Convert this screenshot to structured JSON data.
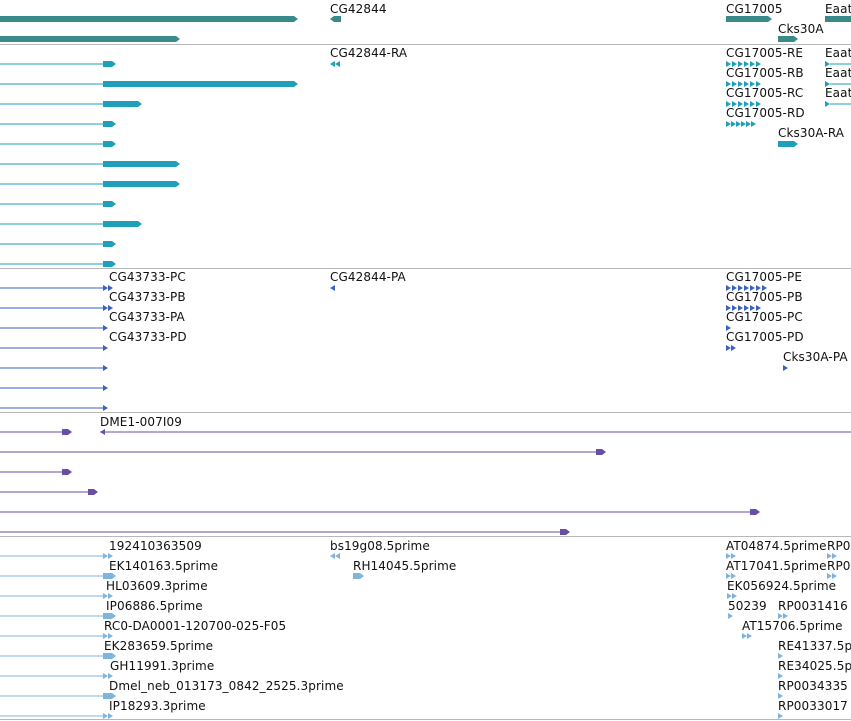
{
  "colors": {
    "gene": "#3a8a8a",
    "mrna": "#1e9fba",
    "protein": "#3a62c0",
    "bac": "#6a4ea4",
    "est": "#7fb4dc",
    "separator": "#b8b8b8"
  },
  "tracks": {
    "gene": {
      "labels": {
        "cg42844": "CG42844",
        "cg17005": "CG17005",
        "eaat": "Eaat",
        "cks30a": "Cks30A"
      }
    },
    "transcripts": {
      "labels": {
        "cg42844_ra": "CG42844-RA",
        "cg17005_re": "CG17005-RE",
        "cg17005_rb": "CG17005-RB",
        "cg17005_rc": "CG17005-RC",
        "cg17005_rd": "CG17005-RD",
        "eaat_1": "Eaat",
        "eaat_2": "Eaat",
        "eaat_3": "Eaat",
        "cks30a_ra": "Cks30A-RA"
      }
    },
    "proteins": {
      "labels": {
        "cg43733_pc": "CG43733-PC",
        "cg43733_pb": "CG43733-PB",
        "cg43733_pa": "CG43733-PA",
        "cg43733_pd": "CG43733-PD",
        "cg42844_pa": "CG42844-PA",
        "cg17005_pe": "CG17005-PE",
        "cg17005_pb": "CG17005-PB",
        "cg17005_pc": "CG17005-PC",
        "cg17005_pd": "CG17005-PD",
        "cks30a_pa": "Cks30A-PA"
      }
    },
    "bac": {
      "labels": {
        "dme1": "DME1-007I09"
      }
    },
    "est": {
      "labels": {
        "e1": "192410363509",
        "e2": "EK140163.5prime",
        "e3": "HL03609.3prime",
        "e4": "IP06886.5prime",
        "e5": "RC0-DA0001-120700-025-F05",
        "e6": "EK283659.5prime",
        "e7": "GH11991.3prime",
        "e8": "Dmel_neb_013173_0842_2525.3prime",
        "e9": "IP18293.3prime",
        "e10": "bs19g08.5prime",
        "e11": "RH14045.5prime",
        "e12": "AT04874.5prime",
        "e13": "RP0",
        "e14": "AT17041.5prime",
        "e15": "RP0",
        "e16": "EK056924.5prime",
        "e17": "50239",
        "e18": "RP0031416",
        "e19": "AT15706.5prime",
        "e20": "RE41337.5p",
        "e21": "RE34025.5p",
        "e22": "RP0034335",
        "e23": "RP0033017"
      }
    }
  }
}
